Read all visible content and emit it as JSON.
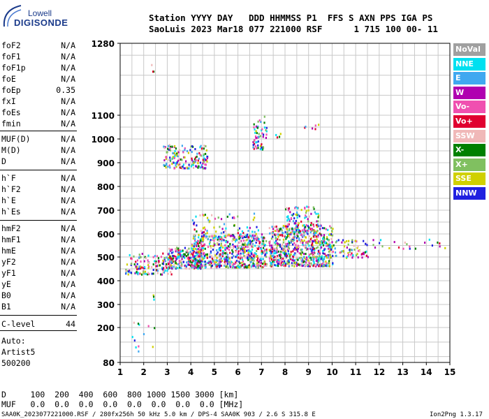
{
  "logo": {
    "top": "Lowell",
    "bottom": "DIGISONDE"
  },
  "header": {
    "line1": "Station YYYY DAY   DDD HHMMSS P1  FFS S AXN PPS IGA PS",
    "line2": "SaoLuis 2023 Mar18 077 221000 RSF      1 715 100 00- 11"
  },
  "params_group1": [
    {
      "name": "foF2",
      "value": "N/A"
    },
    {
      "name": "foF1",
      "value": "N/A"
    },
    {
      "name": "foF1p",
      "value": "N/A"
    },
    {
      "name": "foE",
      "value": "N/A"
    },
    {
      "name": "foEp",
      "value": "0.35"
    },
    {
      "name": "fxI",
      "value": "N/A"
    },
    {
      "name": "foEs",
      "value": "N/A"
    },
    {
      "name": "fmin",
      "value": "N/A"
    }
  ],
  "params_group2": [
    {
      "name": "MUF(D)",
      "value": "N/A"
    },
    {
      "name": "M(D)",
      "value": "N/A"
    },
    {
      "name": "D",
      "value": "N/A"
    }
  ],
  "params_group3": [
    {
      "name": "h`F",
      "value": "N/A"
    },
    {
      "name": "h`F2",
      "value": "N/A"
    },
    {
      "name": "h`E",
      "value": "N/A"
    },
    {
      "name": "h`Es",
      "value": "N/A"
    }
  ],
  "params_group4": [
    {
      "name": "hmF2",
      "value": "N/A"
    },
    {
      "name": "hmF1",
      "value": "N/A"
    },
    {
      "name": "hmE",
      "value": "N/A"
    },
    {
      "name": "yF2",
      "value": "N/A"
    },
    {
      "name": "yF1",
      "value": "N/A"
    },
    {
      "name": "yE",
      "value": "N/A"
    },
    {
      "name": "B0",
      "value": "N/A"
    },
    {
      "name": "B1",
      "value": "N/A"
    }
  ],
  "clevel": {
    "name": "C-level",
    "value": "44"
  },
  "auto": [
    "Auto:",
    "Artist5",
    "500200"
  ],
  "footer": {
    "d_row": "D     100  200  400  600  800 1000 1500 3000 [km]",
    "muf_row": "MUF   0.0  0.0  0.0  0.0  0.0  0.0  0.0  0.0 [MHz]",
    "file_info": "SAA0K_2023077221000.RSF / 280fx256h 50 kHz 5.0 km / DPS-4 SAA0K 903 / 2.6 S 315.8 E",
    "version": "Ion2Png 1.3.17"
  },
  "legend": [
    {
      "label": "NoVal",
      "color": "#a0a0a0"
    },
    {
      "label": "NNE",
      "color": "#00e0f0"
    },
    {
      "label": "E",
      "color": "#40a8f0"
    },
    {
      "label": "W",
      "color": "#b000b0"
    },
    {
      "label": "Vo-",
      "color": "#f050b0"
    },
    {
      "label": "Vo+",
      "color": "#e00030"
    },
    {
      "label": "SSW",
      "color": "#f0b8b8"
    },
    {
      "label": "X-",
      "color": "#008000"
    },
    {
      "label": "X+",
      "color": "#80c060"
    },
    {
      "label": "SSE",
      "color": "#d0d000"
    },
    {
      "label": "NNW",
      "color": "#2020e0"
    }
  ],
  "chart_data": {
    "type": "scatter",
    "xlim": [
      1,
      15
    ],
    "ylim": [
      80,
      1280
    ],
    "xticks": [
      1,
      2,
      3,
      4,
      5,
      6,
      7,
      8,
      9,
      10,
      11,
      12,
      13,
      14,
      15
    ],
    "yticks": [
      80,
      200,
      300,
      400,
      500,
      600,
      700,
      800,
      900,
      1000,
      1100,
      1280
    ],
    "grid": true,
    "regions": [
      {
        "x": [
          1.2,
          3.2
        ],
        "y": [
          430,
          520
        ],
        "n": 150
      },
      {
        "x": [
          3.0,
          4.5
        ],
        "y": [
          455,
          545
        ],
        "n": 220
      },
      {
        "x": [
          4.0,
          7.2
        ],
        "y": [
          460,
          600
        ],
        "n": 650
      },
      {
        "x": [
          4.0,
          7.0
        ],
        "y": [
          590,
          690
        ],
        "n": 80
      },
      {
        "x": [
          7.3,
          10.0
        ],
        "y": [
          465,
          640
        ],
        "n": 650
      },
      {
        "x": [
          8.0,
          9.4
        ],
        "y": [
          590,
          720
        ],
        "n": 130
      },
      {
        "x": [
          10.0,
          11.5
        ],
        "y": [
          500,
          580
        ],
        "n": 70
      },
      {
        "x": [
          11.5,
          14.8
        ],
        "y": [
          540,
          580
        ],
        "n": 22
      },
      {
        "x": [
          2.8,
          4.7
        ],
        "y": [
          880,
          980
        ],
        "n": 170
      },
      {
        "x": [
          6.6,
          7.2
        ],
        "y": [
          960,
          1100
        ],
        "n": 60
      },
      {
        "x": [
          7.5,
          7.8
        ],
        "y": [
          1010,
          1030
        ],
        "n": 4
      },
      {
        "x": [
          8.8,
          9.5
        ],
        "y": [
          1045,
          1080
        ],
        "n": 6
      },
      {
        "x": [
          1.3,
          2.5
        ],
        "y": [
          120,
          240
        ],
        "n": 12
      },
      {
        "x": [
          2.3,
          2.5
        ],
        "y": [
          300,
          350
        ],
        "n": 3
      },
      {
        "x": [
          2.3,
          2.4
        ],
        "y": [
          1210,
          1230
        ],
        "n": 3
      }
    ]
  }
}
